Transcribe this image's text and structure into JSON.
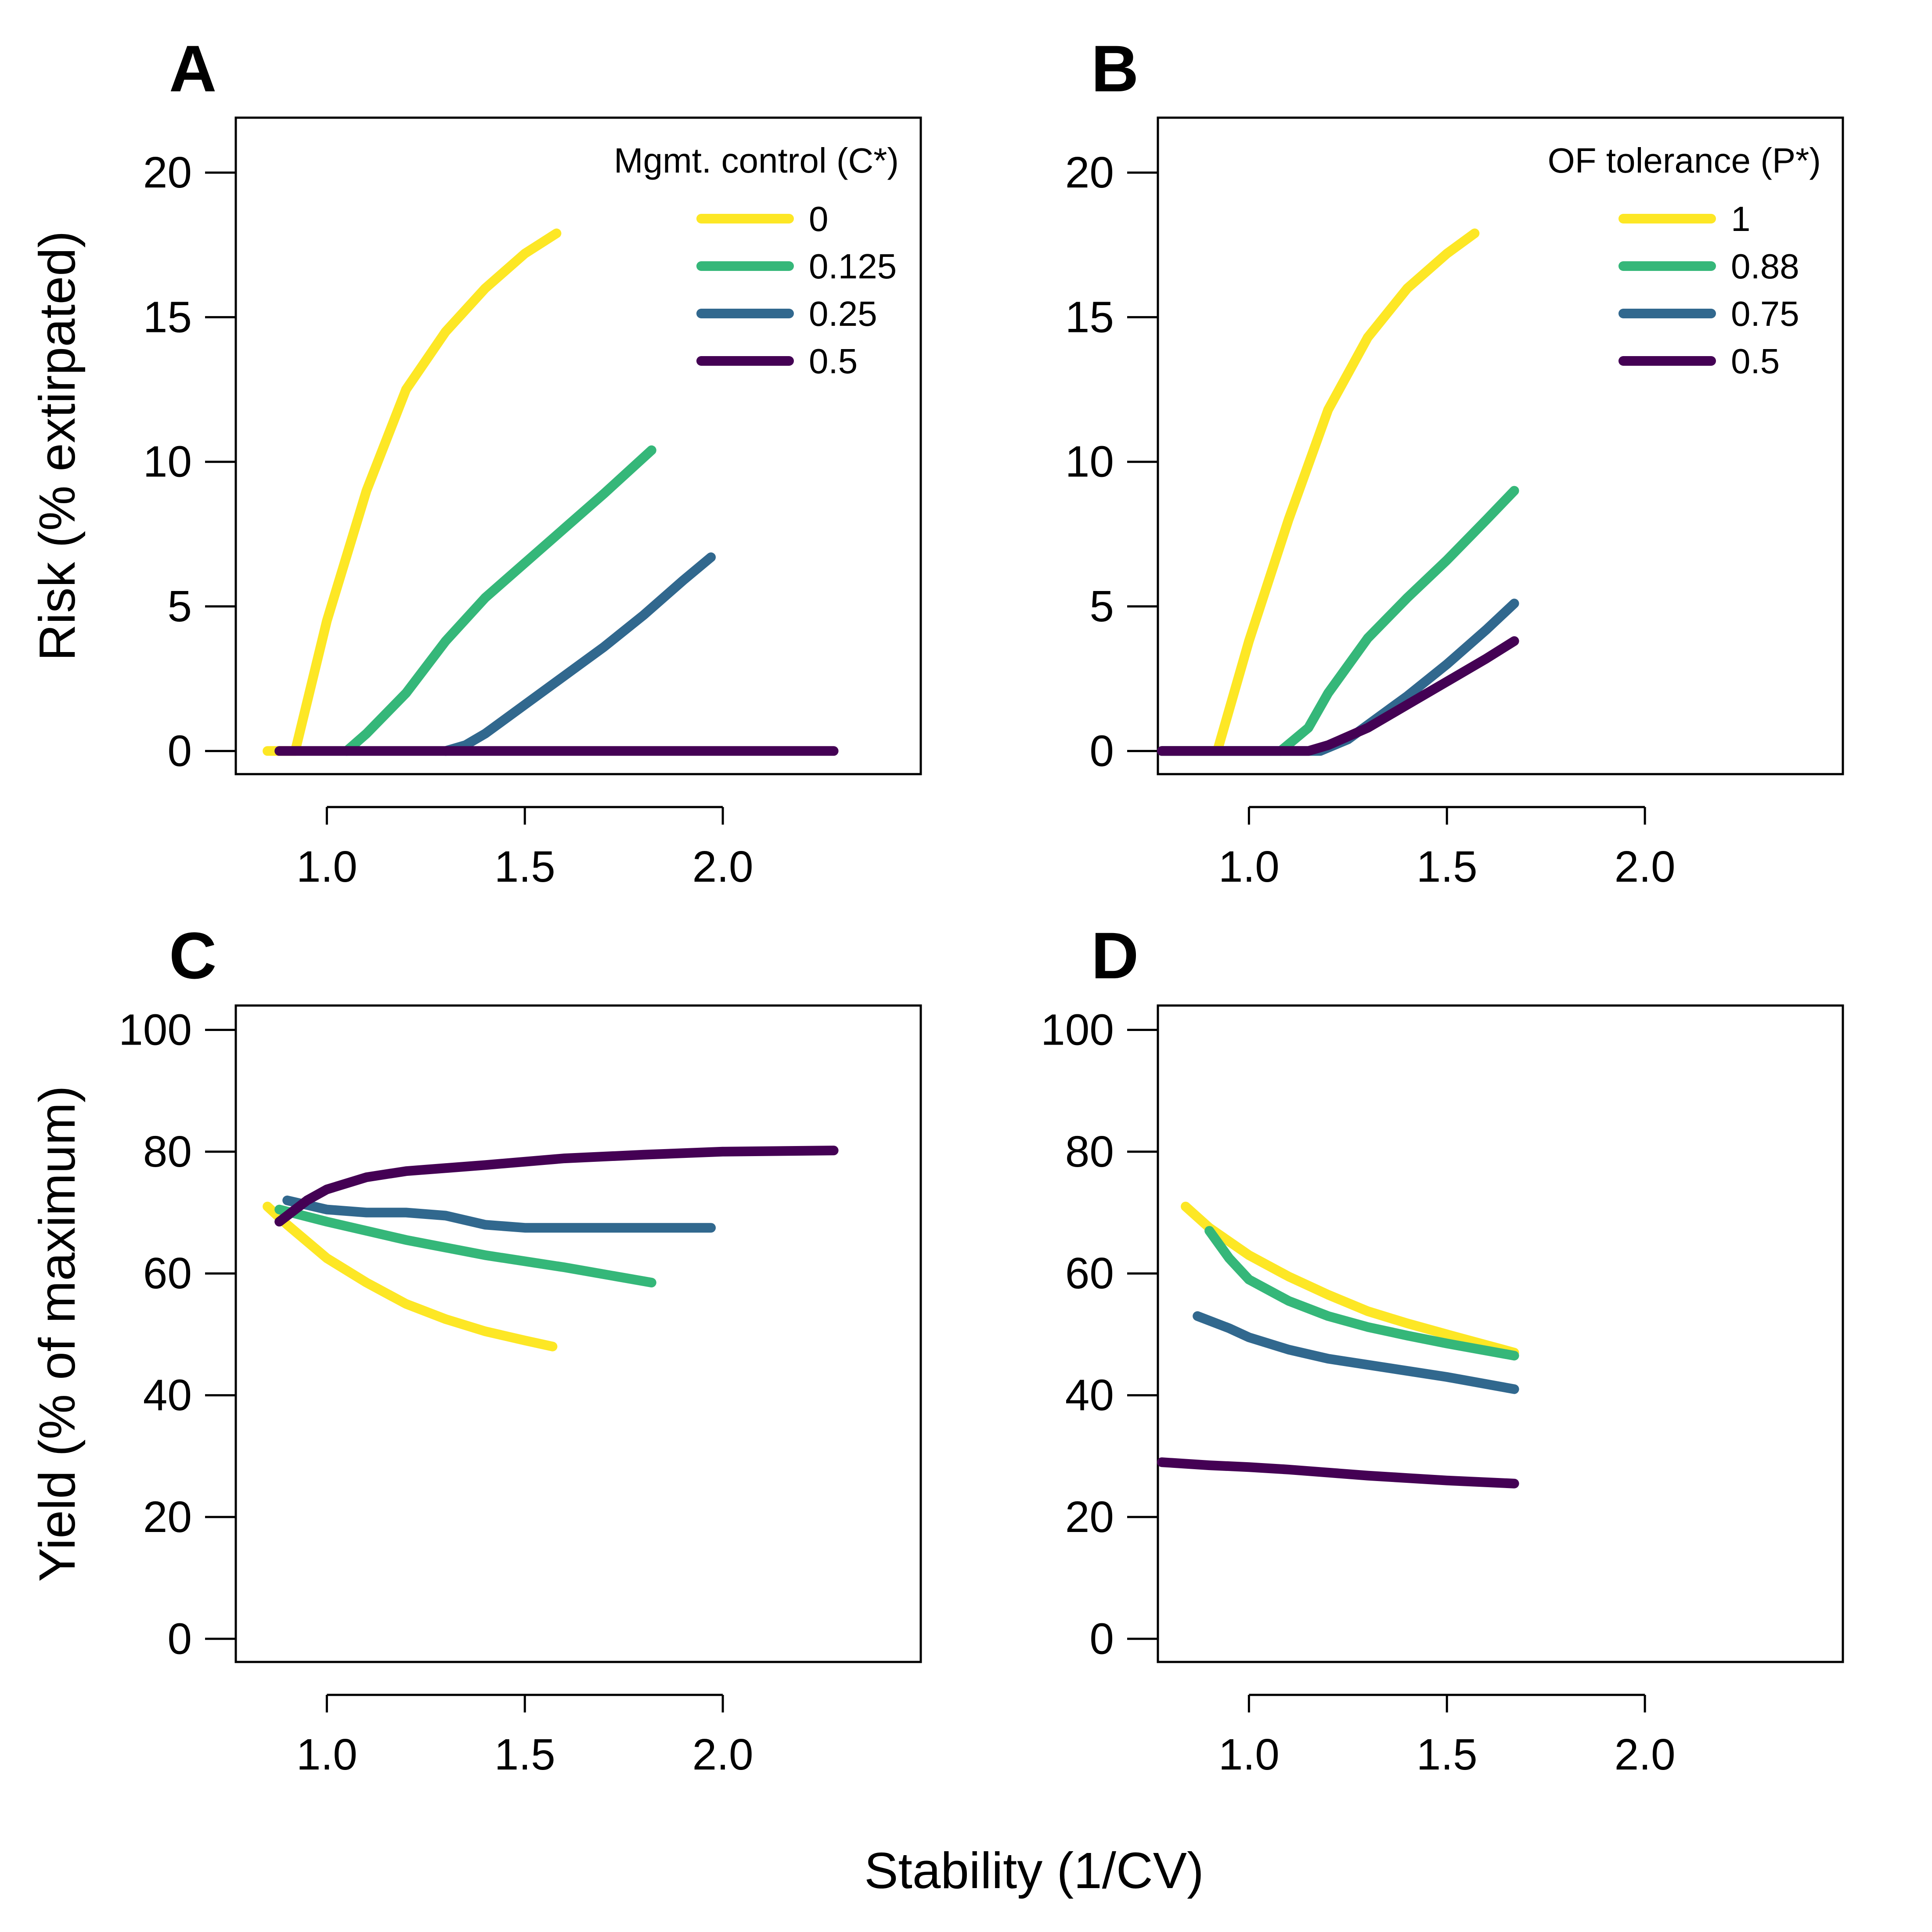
{
  "xlabel": "Stability (1/CV)",
  "colors": {
    "yellow": "#fde725",
    "green": "#35b779",
    "blue": "#31688e",
    "purple": "#440154"
  },
  "chart_data": [
    {
      "panel": "A",
      "type": "line",
      "ylabel": "Risk (% extirpated)",
      "xlim": [
        0.77,
        2.5
      ],
      "ylim": [
        -0.8,
        21.9
      ],
      "xticks": [
        "1.0",
        "1.5",
        "2.0"
      ],
      "xtick_values": [
        1.0,
        1.5,
        2.0
      ],
      "yticks": [
        "0",
        "5",
        "10",
        "15",
        "20"
      ],
      "ytick_values": [
        0,
        5,
        10,
        15,
        20
      ],
      "legend": {
        "title": "Mgmt. control (C*)",
        "position": "top-right"
      },
      "series": [
        {
          "name": "0",
          "color": "#fde725",
          "x": [
            0.85,
            0.92,
            1.0,
            1.1,
            1.2,
            1.3,
            1.4,
            1.5,
            1.58
          ],
          "y": [
            0,
            0,
            4.5,
            9.0,
            12.5,
            14.5,
            16.0,
            17.2,
            17.9
          ]
        },
        {
          "name": "0.125",
          "color": "#35b779",
          "x": [
            1.05,
            1.1,
            1.2,
            1.3,
            1.4,
            1.5,
            1.6,
            1.7,
            1.82
          ],
          "y": [
            0,
            0.6,
            2.0,
            3.8,
            5.3,
            6.5,
            7.7,
            8.9,
            10.4
          ]
        },
        {
          "name": "0.25",
          "color": "#31688e",
          "x": [
            1.3,
            1.35,
            1.4,
            1.5,
            1.6,
            1.7,
            1.8,
            1.9,
            1.97
          ],
          "y": [
            0,
            0.2,
            0.6,
            1.6,
            2.6,
            3.6,
            4.7,
            5.9,
            6.7
          ]
        },
        {
          "name": "0.5",
          "color": "#440154",
          "x": [
            0.88,
            1.2,
            1.6,
            2.0,
            2.28
          ],
          "y": [
            0,
            0,
            0,
            0,
            0
          ]
        }
      ]
    },
    {
      "panel": "B",
      "type": "line",
      "ylabel": "",
      "xlim": [
        0.77,
        2.5
      ],
      "ylim": [
        -0.8,
        21.9
      ],
      "xticks": [
        "1.0",
        "1.5",
        "2.0"
      ],
      "xtick_values": [
        1.0,
        1.5,
        2.0
      ],
      "yticks": [
        "0",
        "5",
        "10",
        "15",
        "20"
      ],
      "ytick_values": [
        0,
        5,
        10,
        15,
        20
      ],
      "legend": {
        "title": "OF tolerance (P*)",
        "position": "top-right"
      },
      "series": [
        {
          "name": "1",
          "color": "#fde725",
          "x": [
            0.78,
            0.92,
            1.0,
            1.1,
            1.2,
            1.3,
            1.4,
            1.5,
            1.57
          ],
          "y": [
            0,
            0,
            3.8,
            8.0,
            11.8,
            14.3,
            16.0,
            17.2,
            17.9
          ]
        },
        {
          "name": "0.88",
          "color": "#35b779",
          "x": [
            0.78,
            1.08,
            1.15,
            1.2,
            1.3,
            1.4,
            1.5,
            1.6,
            1.67
          ],
          "y": [
            0,
            0,
            0.8,
            2.0,
            3.9,
            5.3,
            6.6,
            8.0,
            9.0
          ]
        },
        {
          "name": "0.75",
          "color": "#31688e",
          "x": [
            0.78,
            1.18,
            1.25,
            1.3,
            1.4,
            1.5,
            1.6,
            1.67
          ],
          "y": [
            0,
            0,
            0.4,
            0.9,
            1.9,
            3.0,
            4.2,
            5.1
          ]
        },
        {
          "name": "0.5",
          "color": "#440154",
          "x": [
            0.78,
            1.15,
            1.2,
            1.3,
            1.4,
            1.5,
            1.6,
            1.67
          ],
          "y": [
            0,
            0,
            0.2,
            0.8,
            1.6,
            2.4,
            3.2,
            3.8
          ]
        }
      ]
    },
    {
      "panel": "C",
      "type": "line",
      "ylabel": "Yield (% of maximum)",
      "xlim": [
        0.77,
        2.5
      ],
      "ylim": [
        -3.8,
        104.0
      ],
      "xticks": [
        "1.0",
        "1.5",
        "2.0"
      ],
      "xtick_values": [
        1.0,
        1.5,
        2.0
      ],
      "yticks": [
        "0",
        "20",
        "40",
        "60",
        "80",
        "100"
      ],
      "ytick_values": [
        0,
        20,
        40,
        60,
        80,
        100
      ],
      "legend": null,
      "series": [
        {
          "name": "0",
          "color": "#fde725",
          "x": [
            0.85,
            0.9,
            1.0,
            1.1,
            1.2,
            1.3,
            1.4,
            1.5,
            1.57
          ],
          "y": [
            71,
            68,
            62.5,
            58.5,
            55,
            52.5,
            50.5,
            49,
            48
          ]
        },
        {
          "name": "0.125",
          "color": "#35b779",
          "x": [
            0.88,
            1.0,
            1.2,
            1.4,
            1.6,
            1.82
          ],
          "y": [
            70.5,
            68.5,
            65.5,
            63,
            61,
            58.5
          ]
        },
        {
          "name": "0.25",
          "color": "#31688e",
          "x": [
            0.9,
            1.0,
            1.1,
            1.2,
            1.3,
            1.4,
            1.5,
            1.7,
            1.97
          ],
          "y": [
            72,
            70.5,
            70,
            70,
            69.5,
            68,
            67.5,
            67.5,
            67.5
          ]
        },
        {
          "name": "0.5",
          "color": "#440154",
          "x": [
            0.88,
            0.95,
            1.0,
            1.1,
            1.2,
            1.4,
            1.6,
            1.8,
            2.0,
            2.28
          ],
          "y": [
            68.5,
            72,
            73.8,
            75.8,
            76.8,
            77.8,
            78.9,
            79.5,
            80.0,
            80.2
          ]
        }
      ]
    },
    {
      "panel": "D",
      "type": "line",
      "ylabel": "",
      "xlim": [
        0.77,
        2.5
      ],
      "ylim": [
        -3.8,
        104.0
      ],
      "xticks": [
        "1.0",
        "1.5",
        "2.0"
      ],
      "xtick_values": [
        1.0,
        1.5,
        2.0
      ],
      "yticks": [
        "0",
        "20",
        "40",
        "60",
        "80",
        "100"
      ],
      "ytick_values": [
        0,
        20,
        40,
        60,
        80,
        100
      ],
      "legend": null,
      "series": [
        {
          "name": "1",
          "color": "#fde725",
          "x": [
            0.84,
            0.9,
            1.0,
            1.1,
            1.2,
            1.3,
            1.4,
            1.5,
            1.67
          ],
          "y": [
            71,
            67.5,
            63,
            59.5,
            56.5,
            53.8,
            51.8,
            50,
            47
          ]
        },
        {
          "name": "0.88",
          "color": "#35b779",
          "x": [
            0.9,
            0.95,
            1.0,
            1.1,
            1.2,
            1.3,
            1.4,
            1.5,
            1.67
          ],
          "y": [
            67,
            62.5,
            59,
            55.5,
            53,
            51.2,
            49.8,
            48.5,
            46.5
          ]
        },
        {
          "name": "0.75",
          "color": "#31688e",
          "x": [
            0.87,
            0.95,
            1.0,
            1.1,
            1.2,
            1.3,
            1.4,
            1.5,
            1.67
          ],
          "y": [
            53,
            51,
            49.5,
            47.5,
            46,
            45,
            44,
            43,
            41
          ]
        },
        {
          "name": "0.5",
          "color": "#440154",
          "x": [
            0.78,
            0.9,
            1.0,
            1.1,
            1.2,
            1.3,
            1.4,
            1.5,
            1.67
          ],
          "y": [
            29,
            28.5,
            28.2,
            27.8,
            27.3,
            26.8,
            26.4,
            26,
            25.5
          ]
        }
      ]
    }
  ]
}
